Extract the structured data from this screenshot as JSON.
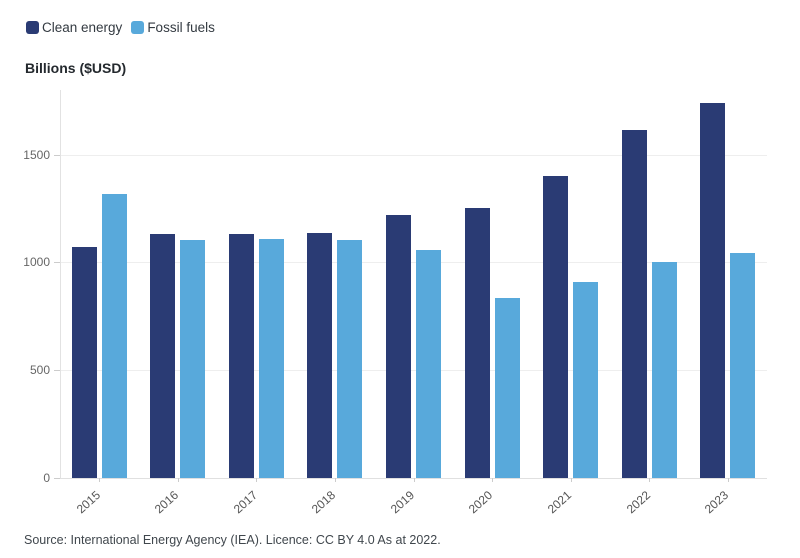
{
  "legend": {
    "items": [
      {
        "label": "Clean energy",
        "color": "#2a3b74"
      },
      {
        "label": "Fossil fuels",
        "color": "#58a9db"
      }
    ]
  },
  "y_axis_title": "Billions ($USD)",
  "source_note": "Source: International Energy Agency (IEA). Licence: CC BY 4.0 As at 2022.",
  "chart_data": {
    "type": "bar",
    "title": "",
    "xlabel": "",
    "ylabel": "Billions ($USD)",
    "categories": [
      "2015",
      "2016",
      "2017",
      "2018",
      "2019",
      "2020",
      "2021",
      "2022",
      "2023"
    ],
    "series": [
      {
        "name": "Clean energy",
        "color": "#2a3b74",
        "values": [
          1070,
          1130,
          1130,
          1135,
          1220,
          1255,
          1400,
          1615,
          1740
        ]
      },
      {
        "name": "Fossil fuels",
        "color": "#58a9db",
        "values": [
          1320,
          1105,
          1110,
          1105,
          1060,
          835,
          910,
          1000,
          1045
        ]
      }
    ],
    "ylim": [
      0,
      1800
    ],
    "yticks": [
      0,
      500,
      1000,
      1500
    ],
    "grid": "horizontal",
    "legend_position": "top-left",
    "bar_orientation": "vertical",
    "x_tick_rotation_deg": -42
  }
}
